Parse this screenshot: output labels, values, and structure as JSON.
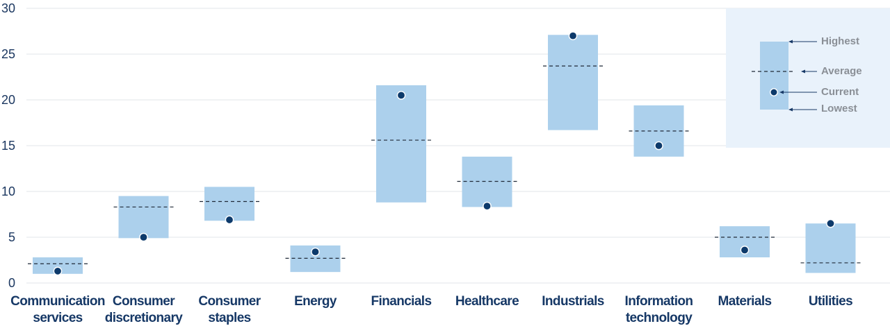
{
  "chart_data": {
    "type": "range",
    "y_ticks": [
      "30",
      "25",
      "20",
      "15",
      "10",
      "5",
      "0"
    ],
    "ylim": [
      0,
      30
    ],
    "grid": true,
    "colors": {
      "range_box": "#acd0ec",
      "current_dot": "#0d3a6b",
      "average_line": "#1f2937",
      "legend_bg": "#e9f2fb",
      "grid": "#e2e5ea"
    },
    "categories": [
      [
        "Communication",
        "services"
      ],
      [
        "Consumer",
        "discretionary"
      ],
      [
        "Consumer",
        "staples"
      ],
      [
        "Energy"
      ],
      [
        "Financials"
      ],
      [
        "Healthcare"
      ],
      [
        "Industrials"
      ],
      [
        "Information",
        "technology"
      ],
      [
        "Materials"
      ],
      [
        "Utilities"
      ]
    ],
    "series": [
      {
        "name": "Highest",
        "values": [
          2.8,
          9.5,
          10.5,
          4.1,
          21.6,
          13.8,
          27.1,
          19.4,
          6.2,
          6.5
        ]
      },
      {
        "name": "Lowest",
        "values": [
          1.0,
          4.9,
          6.8,
          1.2,
          8.8,
          8.3,
          16.7,
          13.8,
          2.8,
          1.1
        ]
      },
      {
        "name": "Average",
        "values": [
          2.1,
          8.3,
          8.9,
          2.7,
          15.6,
          11.1,
          23.7,
          16.6,
          5.0,
          2.2
        ]
      },
      {
        "name": "Current",
        "values": [
          1.3,
          5.0,
          6.9,
          3.4,
          20.5,
          8.4,
          27.0,
          15.0,
          3.6,
          6.5
        ]
      }
    ],
    "legend": {
      "position": "top-right",
      "highest": "Highest",
      "average": "Average",
      "current": "Current",
      "lowest": "Lowest"
    }
  }
}
